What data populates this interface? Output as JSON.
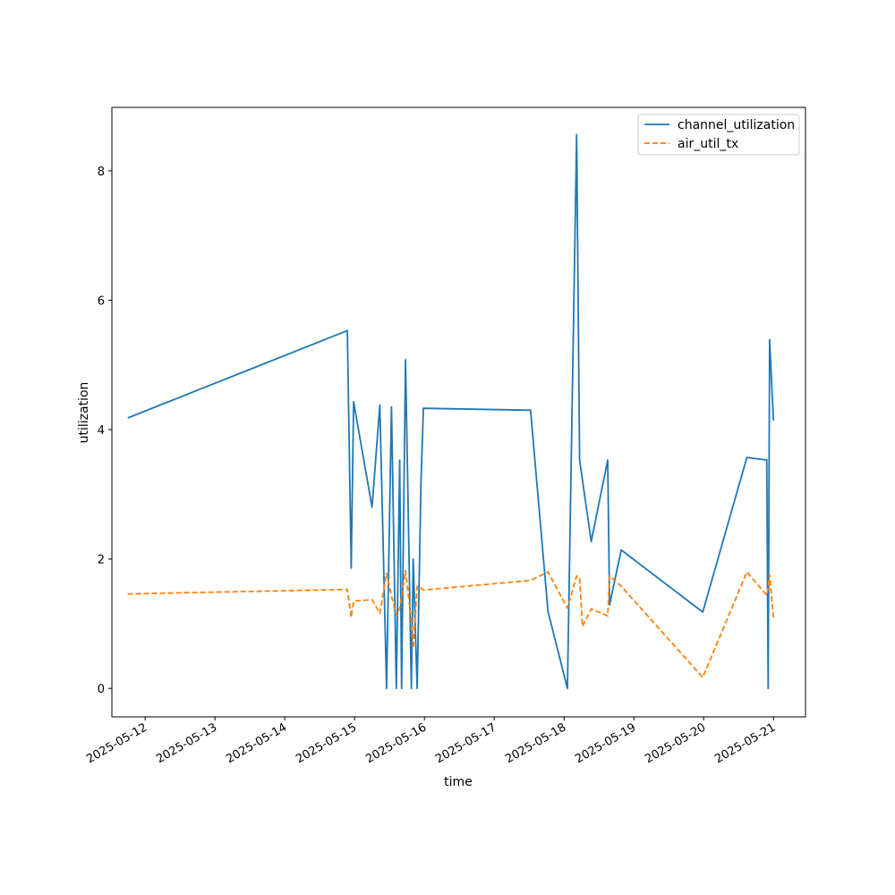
{
  "chart_data": {
    "type": "line",
    "title": "",
    "xlabel": "time",
    "ylabel": "utilization",
    "xlim": [
      "2025-05-11T12:34",
      "2025-05-21T11:00"
    ],
    "ylim": [
      -0.44,
      8.98
    ],
    "grid": false,
    "legend_position": "top-right",
    "x_ticks": [
      "2025-05-12",
      "2025-05-13",
      "2025-05-14",
      "2025-05-15",
      "2025-05-16",
      "2025-05-17",
      "2025-05-18",
      "2025-05-19",
      "2025-05-20",
      "2025-05-21"
    ],
    "y_ticks": [
      0,
      2,
      4,
      6,
      8
    ],
    "series": [
      {
        "name": "channel_utilization",
        "color": "#1f77b4",
        "style": "solid",
        "points": [
          [
            "2025-05-11T18:00",
            4.18
          ],
          [
            "2025-05-14T21:30",
            5.53
          ],
          [
            "2025-05-14T22:50",
            1.86
          ],
          [
            "2025-05-14T23:40",
            4.43
          ],
          [
            "2025-05-15T06:00",
            2.8
          ],
          [
            "2025-05-15T08:40",
            4.38
          ],
          [
            "2025-05-15T11:00",
            0.0
          ],
          [
            "2025-05-15T12:40",
            4.35
          ],
          [
            "2025-05-15T14:20",
            0.0
          ],
          [
            "2025-05-15T15:30",
            3.53
          ],
          [
            "2025-05-15T16:10",
            0.0
          ],
          [
            "2025-05-15T17:30",
            5.08
          ],
          [
            "2025-05-15T19:30",
            0.0
          ],
          [
            "2025-05-15T20:10",
            2.0
          ],
          [
            "2025-05-15T21:30",
            0.0
          ],
          [
            "2025-05-15T22:50",
            3.2
          ],
          [
            "2025-05-15T23:40",
            4.33
          ],
          [
            "2025-05-17T12:30",
            4.3
          ],
          [
            "2025-05-17T18:30",
            1.19
          ],
          [
            "2025-05-18T01:10",
            0.0
          ],
          [
            "2025-05-18T04:20",
            8.56
          ],
          [
            "2025-05-18T05:20",
            3.53
          ],
          [
            "2025-05-18T09:20",
            2.27
          ],
          [
            "2025-05-18T15:00",
            3.53
          ],
          [
            "2025-05-18T15:40",
            1.29
          ],
          [
            "2025-05-18T19:40",
            2.14
          ],
          [
            "2025-05-19T23:40",
            1.18
          ],
          [
            "2025-05-20T14:50",
            3.57
          ],
          [
            "2025-05-20T21:40",
            3.53
          ],
          [
            "2025-05-20T22:10",
            0.0
          ],
          [
            "2025-05-20T22:40",
            5.39
          ],
          [
            "2025-05-21T00:00",
            4.14
          ]
        ]
      },
      {
        "name": "air_util_tx",
        "color": "#ff7f0e",
        "style": "dashed",
        "points": [
          [
            "2025-05-11T18:00",
            1.46
          ],
          [
            "2025-05-14T21:30",
            1.53
          ],
          [
            "2025-05-14T22:50",
            1.1
          ],
          [
            "2025-05-14T23:40",
            1.35
          ],
          [
            "2025-05-15T06:00",
            1.37
          ],
          [
            "2025-05-15T08:40",
            1.16
          ],
          [
            "2025-05-15T11:00",
            1.78
          ],
          [
            "2025-05-15T12:40",
            1.43
          ],
          [
            "2025-05-15T14:20",
            1.13
          ],
          [
            "2025-05-15T15:30",
            1.24
          ],
          [
            "2025-05-15T16:10",
            1.43
          ],
          [
            "2025-05-15T17:30",
            1.82
          ],
          [
            "2025-05-15T19:30",
            1.05
          ],
          [
            "2025-05-15T20:10",
            0.62
          ],
          [
            "2025-05-15T21:30",
            1.58
          ],
          [
            "2025-05-15T22:50",
            1.55
          ],
          [
            "2025-05-15T23:40",
            1.52
          ],
          [
            "2025-05-17T12:30",
            1.67
          ],
          [
            "2025-05-17T18:30",
            1.8
          ],
          [
            "2025-05-18T01:10",
            1.24
          ],
          [
            "2025-05-18T04:20",
            1.74
          ],
          [
            "2025-05-18T05:20",
            1.71
          ],
          [
            "2025-05-18T06:20",
            0.96
          ],
          [
            "2025-05-18T09:20",
            1.23
          ],
          [
            "2025-05-18T15:00",
            1.12
          ],
          [
            "2025-05-18T15:40",
            1.74
          ],
          [
            "2025-05-18T19:40",
            1.58
          ],
          [
            "2025-05-19T23:40",
            0.17
          ],
          [
            "2025-05-20T14:50",
            1.8
          ],
          [
            "2025-05-20T21:40",
            1.44
          ],
          [
            "2025-05-20T22:10",
            1.57
          ],
          [
            "2025-05-20T22:40",
            1.76
          ],
          [
            "2025-05-21T00:00",
            1.09
          ]
        ]
      }
    ]
  }
}
